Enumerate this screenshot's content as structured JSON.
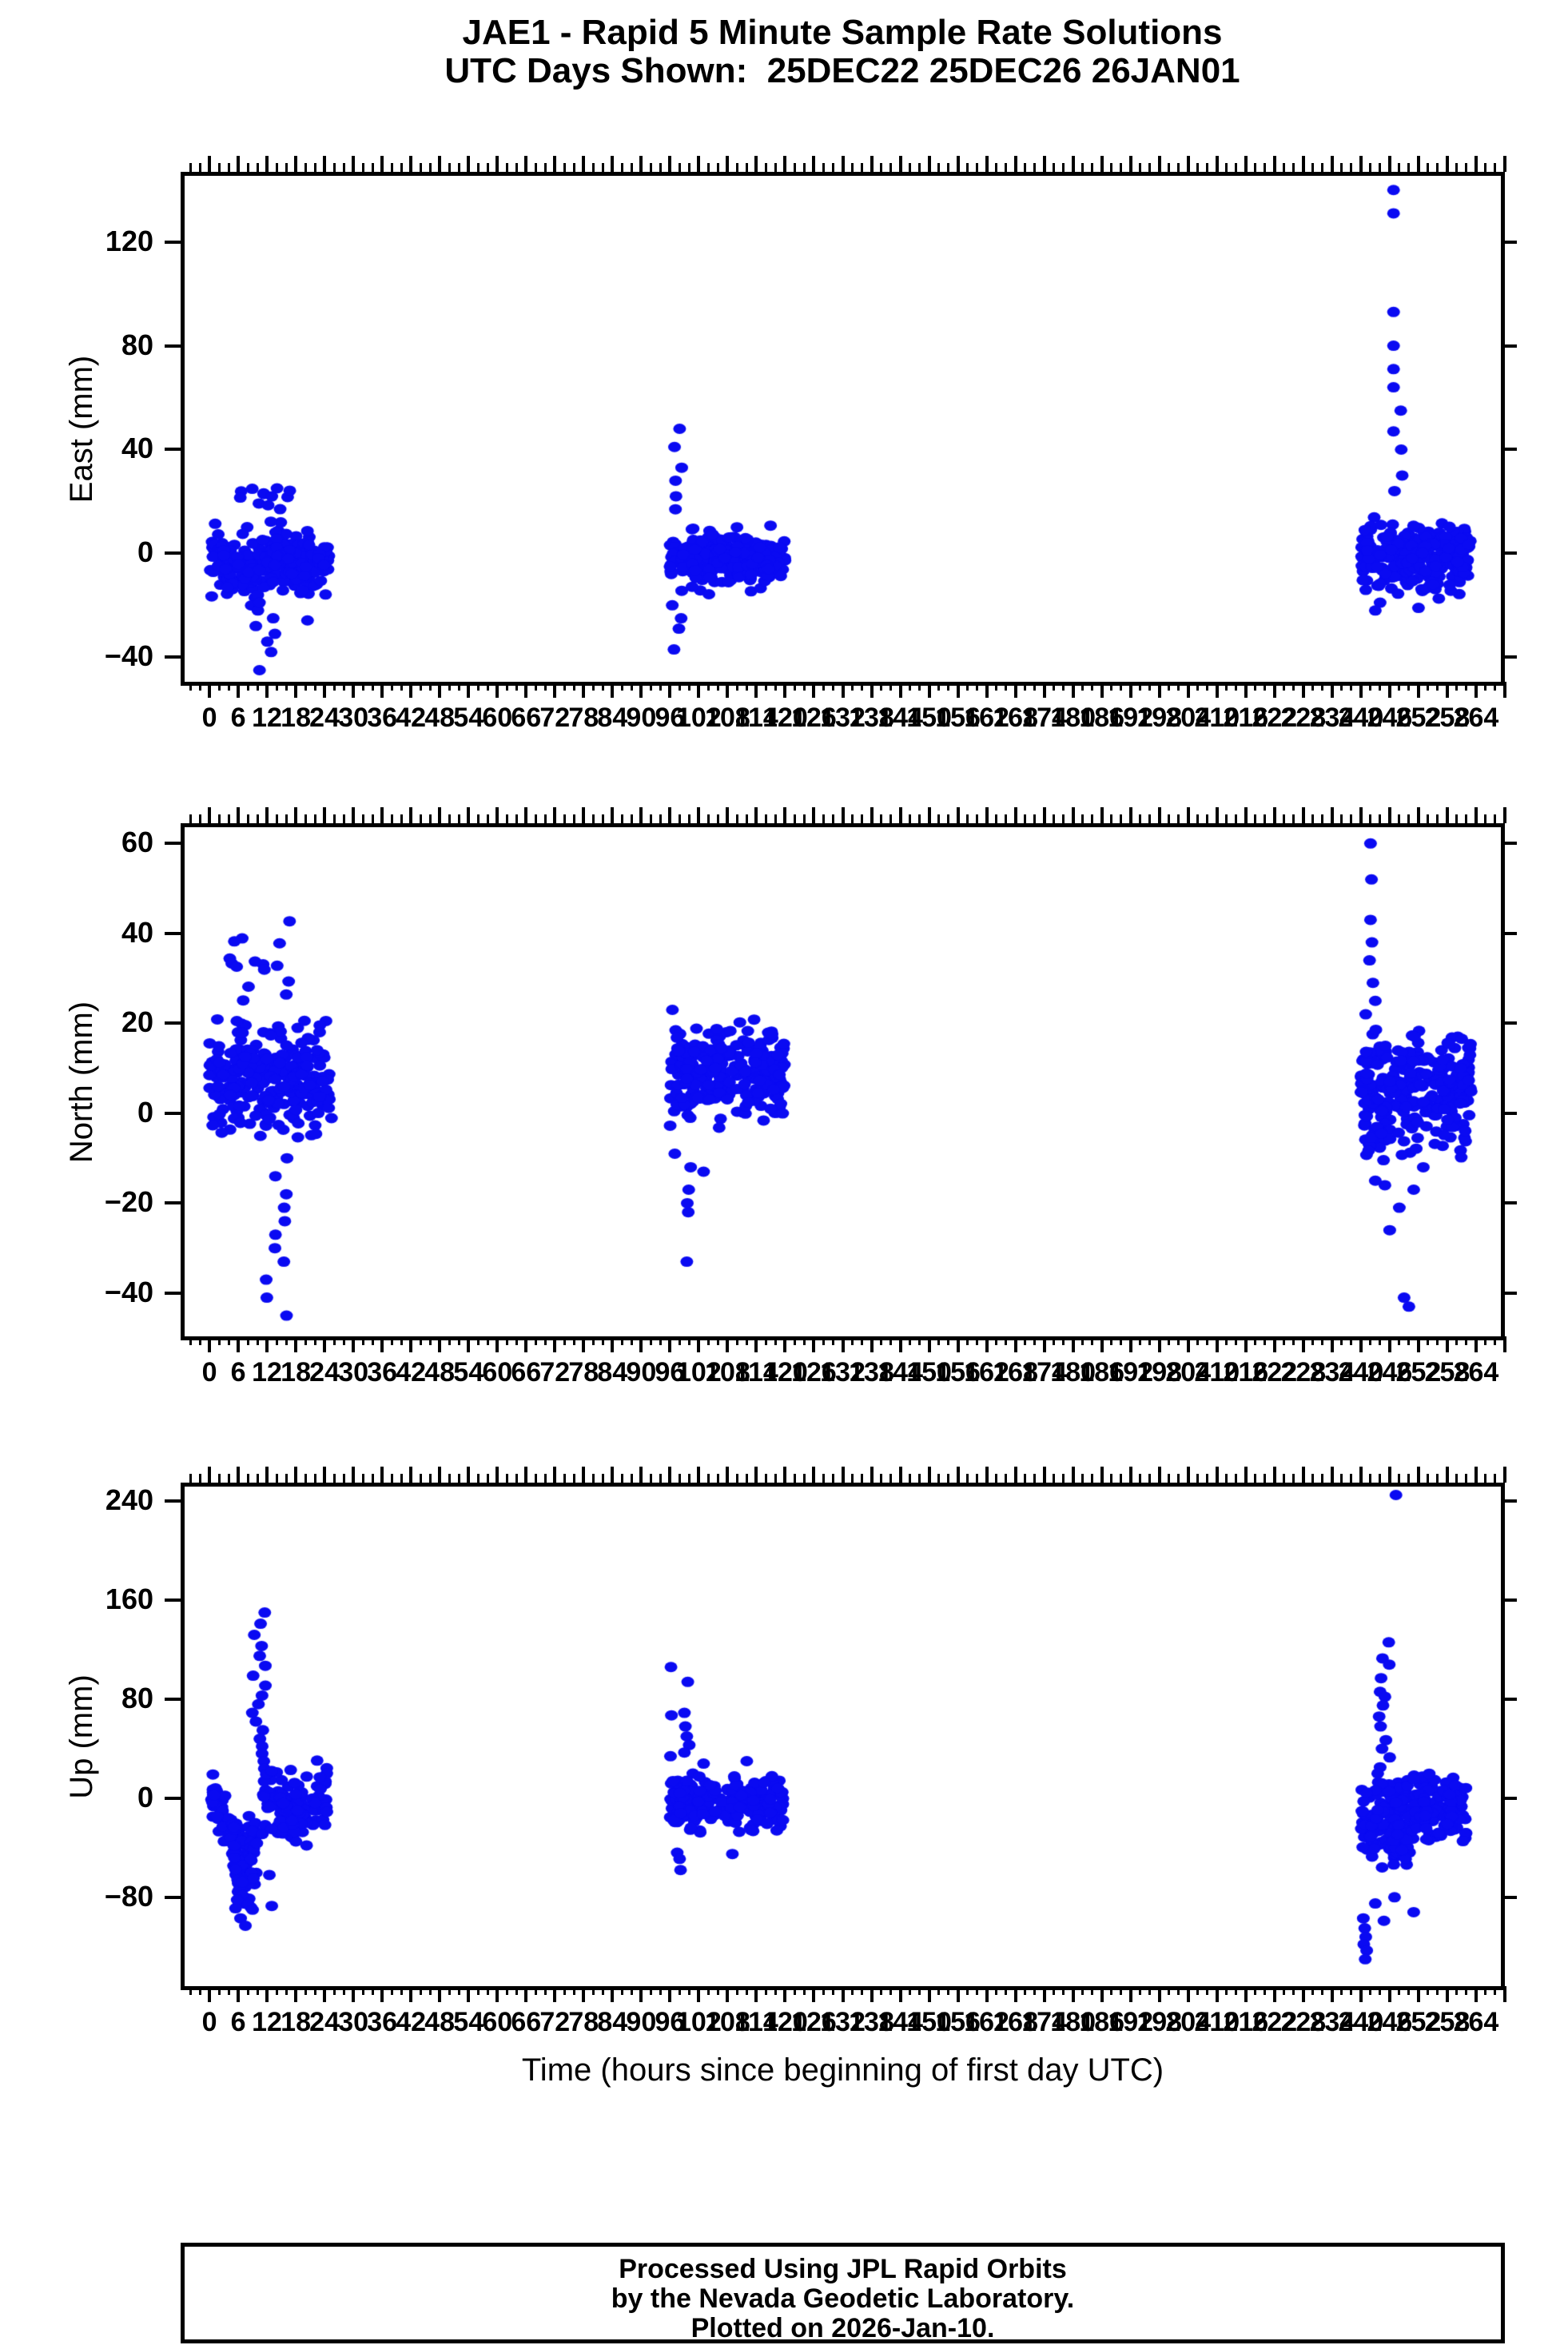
{
  "chart_data": {
    "type": "scatter",
    "title": "JAE1 - Rapid 5 Minute Sample Rate Solutions",
    "subtitle": "UTC Days Shown:  25DEC22 25DEC26 26JAN01",
    "xlabel": "Time (hours since beginning of first day UTC)",
    "point_color": "#0a0af2",
    "point_rx": 8,
    "point_ry": 6.5,
    "grid": false,
    "legend": "none",
    "x_axis": {
      "min": -6,
      "max": 270,
      "label_start": 0,
      "label_end": 264,
      "major_step": 6,
      "minor_step": 2
    },
    "panels": [
      {
        "id": "east",
        "ylabel": "East (mm)",
        "ylim": [
          -51,
          147
        ],
        "yticks": [
          -40,
          0,
          40,
          80,
          120
        ],
        "clusters": [
          {
            "kind": "cloud",
            "x0": 0,
            "x1": 25,
            "n": 250,
            "mean": -4,
            "std": 6,
            "ymin": -26,
            "ymax": 14
          },
          {
            "kind": "cloud",
            "x0": 5,
            "x1": 17,
            "n": 14,
            "mean": 18,
            "std": 5,
            "ymin": 11,
            "ymax": 26
          },
          {
            "kind": "column",
            "x": 11.5,
            "xj": 2.4,
            "ys": [
              -45,
              -38,
              -34,
              -31,
              -28,
              -25,
              -22,
              -19
            ]
          },
          {
            "kind": "cloud",
            "x0": 96,
            "x1": 120,
            "n": 250,
            "mean": -2,
            "std": 5,
            "ymin": -16,
            "ymax": 11
          },
          {
            "kind": "column",
            "x": 97.5,
            "xj": 1.2,
            "ys": [
              48,
              41,
              33,
              28,
              22,
              17,
              -20,
              -25,
              -29,
              -37
            ]
          },
          {
            "kind": "cloud",
            "x0": 240,
            "x1": 263,
            "n": 270,
            "mean": -1,
            "std": 6,
            "ymin": -20,
            "ymax": 15
          },
          {
            "kind": "points",
            "pts": [
              [
                246.8,
                140
              ],
              [
                246.8,
                131
              ],
              [
                246.8,
                93
              ],
              [
                246.8,
                80
              ],
              [
                246.8,
                71
              ],
              [
                246.8,
                64
              ],
              [
                248.3,
                55
              ],
              [
                246.8,
                47
              ],
              [
                248.4,
                40
              ],
              [
                248.6,
                30
              ],
              [
                247.0,
                24
              ],
              [
                252.0,
                -21
              ],
              [
                244.0,
                -19
              ],
              [
                243.0,
                -22
              ]
            ]
          }
        ]
      },
      {
        "id": "north",
        "ylabel": "North (mm)",
        "ylim": [
          -50.5,
          64.5
        ],
        "yticks": [
          -40,
          -20,
          0,
          20,
          40,
          60
        ],
        "clusters": [
          {
            "kind": "cloud",
            "x0": 0,
            "x1": 25.5,
            "n": 260,
            "mean": 8,
            "std": 6,
            "ymin": -6,
            "ymax": 23
          },
          {
            "kind": "cloud",
            "x0": 3,
            "x1": 17,
            "n": 15,
            "mean": 31,
            "std": 5,
            "ymin": 25,
            "ymax": 43
          },
          {
            "kind": "column",
            "x": 14,
            "xj": 2.6,
            "ys": [
              -45,
              -41,
              -37,
              -33,
              -30,
              -27,
              -24,
              -21,
              -18,
              -14,
              -10
            ]
          },
          {
            "kind": "cloud",
            "x0": 96,
            "x1": 120,
            "n": 270,
            "mean": 9,
            "std": 5,
            "ymin": -4,
            "ymax": 22
          },
          {
            "kind": "points",
            "pts": [
              [
                99.5,
                -33
              ],
              [
                99.8,
                -22
              ],
              [
                99.6,
                -20
              ],
              [
                99.9,
                -17
              ],
              [
                100.3,
                -12
              ],
              [
                97.0,
                -9
              ],
              [
                103.0,
                -13
              ],
              [
                96.5,
                23
              ]
            ]
          },
          {
            "kind": "cloud",
            "x0": 240,
            "x1": 263,
            "n": 280,
            "mean": 5,
            "std": 7,
            "ymin": -14,
            "ymax": 20
          },
          {
            "kind": "points",
            "pts": [
              [
                242.0,
                60
              ],
              [
                242.2,
                52
              ],
              [
                242.0,
                43
              ],
              [
                242.3,
                38
              ],
              [
                241.8,
                34
              ],
              [
                242.5,
                29
              ],
              [
                243.0,
                25
              ],
              [
                241.0,
                22
              ],
              [
                249.0,
                -41
              ],
              [
                250.0,
                -43
              ],
              [
                246.0,
                -26
              ],
              [
                248.0,
                -21
              ],
              [
                251.0,
                -17
              ],
              [
                245.0,
                -16
              ],
              [
                253.0,
                -12
              ],
              [
                243.0,
                -15
              ]
            ]
          }
        ]
      },
      {
        "id": "up",
        "ylabel": "Up (mm)",
        "ylim": [
          -155,
          255
        ],
        "yticks": [
          -80,
          0,
          80,
          160,
          240
        ],
        "clusters": [
          {
            "kind": "cloud",
            "x0": 0,
            "x1": 8,
            "n": 80,
            "ytrend": [
              5,
              -55
            ],
            "std": 9,
            "ymin": -95,
            "ymax": 25
          },
          {
            "kind": "cloud",
            "x0": 5,
            "x1": 10,
            "n": 55,
            "mean": -55,
            "std": 20,
            "ymin": -95,
            "ymax": -12
          },
          {
            "kind": "column",
            "x": 10.5,
            "xj": 1.6,
            "ys": [
              150,
              141,
              132,
              123,
              115,
              107,
              99,
              91,
              83,
              76,
              69,
              62,
              55,
              48,
              42,
              36,
              30,
              24
            ]
          },
          {
            "kind": "cloud",
            "x0": 11,
            "x1": 24.5,
            "n": 130,
            "mean": -5,
            "std": 15,
            "ymin": -40,
            "ymax": 38
          },
          {
            "kind": "points",
            "pts": [
              [
                12.5,
                -62
              ],
              [
                13.0,
                -87
              ],
              [
                6.5,
                -97
              ],
              [
                7.5,
                -103
              ],
              [
                9.0,
                -90
              ]
            ]
          },
          {
            "kind": "cloud",
            "x0": 96,
            "x1": 120,
            "n": 230,
            "mean": -3,
            "std": 11,
            "ymin": -28,
            "ymax": 20
          },
          {
            "kind": "points",
            "pts": [
              [
                96.2,
                106
              ],
              [
                99.7,
                94
              ],
              [
                96.3,
                67
              ],
              [
                99.0,
                69
              ],
              [
                99.2,
                58
              ],
              [
                99.5,
                50
              ],
              [
                100.0,
                43
              ],
              [
                99.0,
                37
              ],
              [
                96.1,
                34
              ],
              [
                97.5,
                -44
              ],
              [
                98.0,
                -49
              ],
              [
                98.2,
                -58
              ],
              [
                109.0,
                -45
              ],
              [
                103.0,
                28
              ],
              [
                112.0,
                30
              ]
            ]
          },
          {
            "kind": "cloud",
            "x0": 240,
            "x1": 250,
            "n": 120,
            "mean": -15,
            "std": 20,
            "ymin": -70,
            "ymax": 15
          },
          {
            "kind": "cloud",
            "x0": 246,
            "x1": 251,
            "n": 30,
            "mean": -30,
            "std": 10,
            "ymin": -55,
            "ymax": -8
          },
          {
            "kind": "cloud",
            "x0": 251,
            "x1": 262,
            "n": 130,
            "mean": -6,
            "std": 13,
            "ymin": -35,
            "ymax": 22
          },
          {
            "kind": "points",
            "pts": [
              [
                247.3,
                245
              ],
              [
                245.8,
                126
              ],
              [
                244.5,
                113
              ],
              [
                245.9,
                108
              ],
              [
                244.2,
                97
              ],
              [
                244.0,
                86
              ],
              [
                245.0,
                82
              ],
              [
                244.6,
                75
              ],
              [
                243.8,
                66
              ],
              [
                244.1,
                58
              ],
              [
                245.2,
                47
              ],
              [
                244.4,
                40
              ],
              [
                246.0,
                33
              ],
              [
                244.0,
                25
              ],
              [
                243.5,
                20
              ],
              [
                244.8,
                -99
              ],
              [
                240.5,
                -97
              ],
              [
                240.8,
                -105
              ],
              [
                241.0,
                -112
              ],
              [
                240.6,
                -118
              ],
              [
                241.2,
                -123
              ],
              [
                240.9,
                -130
              ],
              [
                251.0,
                -92
              ],
              [
                247.0,
                -80
              ],
              [
                243.0,
                -85
              ]
            ]
          }
        ]
      }
    ],
    "footer": {
      "line1": "Processed Using JPL Rapid Orbits",
      "line2": "by the Nevada Geodetic Laboratory.",
      "line3": "Plotted on 2026-Jan-10."
    }
  }
}
